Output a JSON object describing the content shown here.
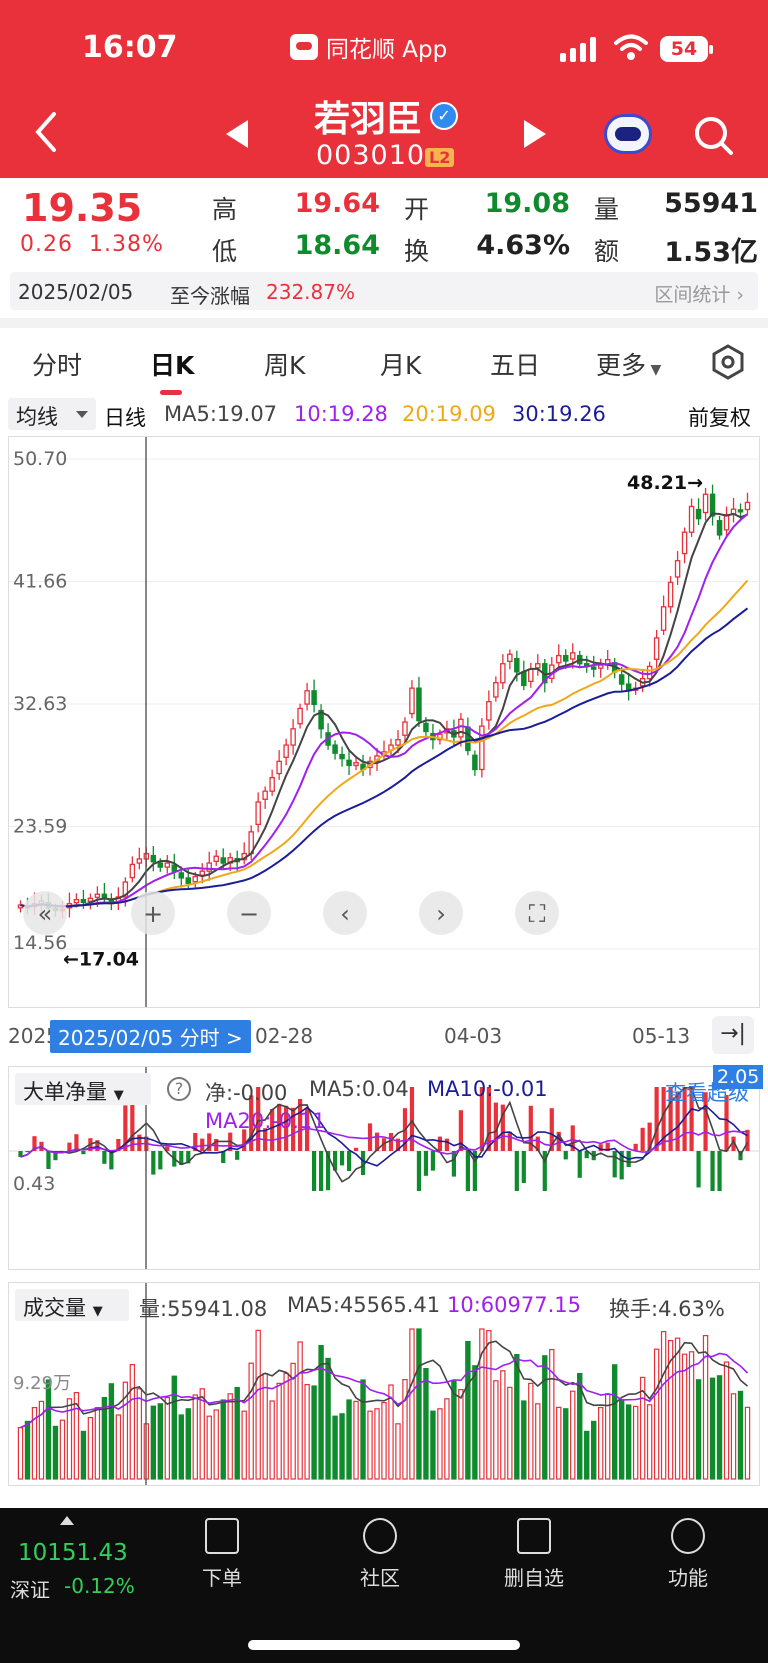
{
  "status": {
    "time": "16:07",
    "app": "同花顺 App",
    "battery": "54"
  },
  "stock": {
    "name": "若羽臣",
    "code": "003010",
    "level": "L2"
  },
  "quote": {
    "price": "19.35",
    "change": "0.26",
    "change_pct": "1.38%",
    "high_label": "高",
    "high": "19.64",
    "low_label": "低",
    "low": "18.64",
    "open_label": "开",
    "open": "19.08",
    "turnover_label": "换",
    "turnover": "4.63%",
    "volume_label": "量",
    "volume": "55941",
    "amount_label": "额",
    "amount": "1.53亿"
  },
  "range_bar": {
    "date": "2025/02/05",
    "label": "至今涨幅",
    "value": "232.87%",
    "stats": "区间统计"
  },
  "tabs": [
    "分时",
    "日K",
    "周K",
    "月K",
    "五日",
    "更多"
  ],
  "indicator": {
    "select": "均线",
    "period": "日线",
    "ma5": "MA5:19.07",
    "ma10": "10:19.28",
    "ma20": "20:19.09",
    "ma30": "30:19.26",
    "adjust": "前复权"
  },
  "colors": {
    "up": "#e8313a",
    "down": "#0f8b2d",
    "ma5": "#444444",
    "ma10": "#a020f0",
    "ma20": "#f0a818",
    "ma30": "#1b1d96"
  },
  "kline": {
    "yticks": [
      "50.70",
      "41.66",
      "32.63",
      "23.59",
      "14.56"
    ],
    "max_label": "48.21→",
    "min_label": "←17.04",
    "dates": [
      "2025",
      "02-28",
      "04-03",
      "05-13"
    ],
    "cursor_label": "2025/02/05 分时 >"
  },
  "chart_data": {
    "type": "candlestick",
    "ylim": [
      14.56,
      50.7
    ],
    "closes": [
      17.8,
      17.6,
      17.9,
      18.1,
      17.6,
      17.4,
      17.5,
      17.9,
      18.2,
      18.0,
      18.3,
      18.6,
      18.3,
      17.9,
      18.4,
      19.5,
      20.8,
      21.2,
      21.6,
      21.0,
      20.6,
      20.9,
      20.3,
      19.8,
      19.4,
      19.9,
      20.3,
      20.9,
      21.4,
      20.9,
      21.3,
      21.0,
      21.6,
      23.2,
      25.4,
      26.2,
      27.2,
      28.4,
      29.6,
      30.8,
      32.3,
      33.6,
      32.6,
      30.8,
      29.6,
      29.0,
      28.6,
      28.1,
      28.3,
      27.8,
      28.4,
      28.8,
      29.1,
      29.6,
      30.0,
      31.3,
      33.8,
      31.4,
      30.6,
      30.0,
      30.4,
      30.8,
      30.2,
      31.5,
      29.2,
      27.8,
      31.0,
      32.8,
      34.2,
      35.6,
      36.3,
      35.0,
      34.0,
      35.2,
      35.6,
      34.2,
      35.5,
      36.2,
      35.8,
      36.4,
      35.6,
      35.4,
      35.2,
      35.5,
      35.9,
      35.0,
      34.1,
      33.6,
      33.8,
      34.5,
      35.4,
      37.5,
      39.8,
      41.6,
      43.2,
      45.3,
      47.2,
      46.3,
      48.1,
      46.5,
      45.1,
      46.6,
      47.0,
      46.8,
      47.5
    ]
  },
  "flow": {
    "select": "大单净量",
    "net": "净:-0.00",
    "ma5": "MA5:0.04",
    "ma10": "MA10:-0.01",
    "ma20": "MA20:-0.11",
    "link": "查看超级",
    "badge": "2.05",
    "ytick": "0.43"
  },
  "volume_panel": {
    "select": "成交量",
    "vol": "量:55941.08",
    "ma5": "MA5:45565.41",
    "ma10": "10:60977.15",
    "turnover": "换手:4.63%",
    "ytick": "9.29万"
  },
  "bottom": {
    "index_value": "10151.43",
    "index_name": "深证",
    "index_change": "-0.12%",
    "items": [
      "下单",
      "社区",
      "删自选",
      "功能"
    ]
  }
}
